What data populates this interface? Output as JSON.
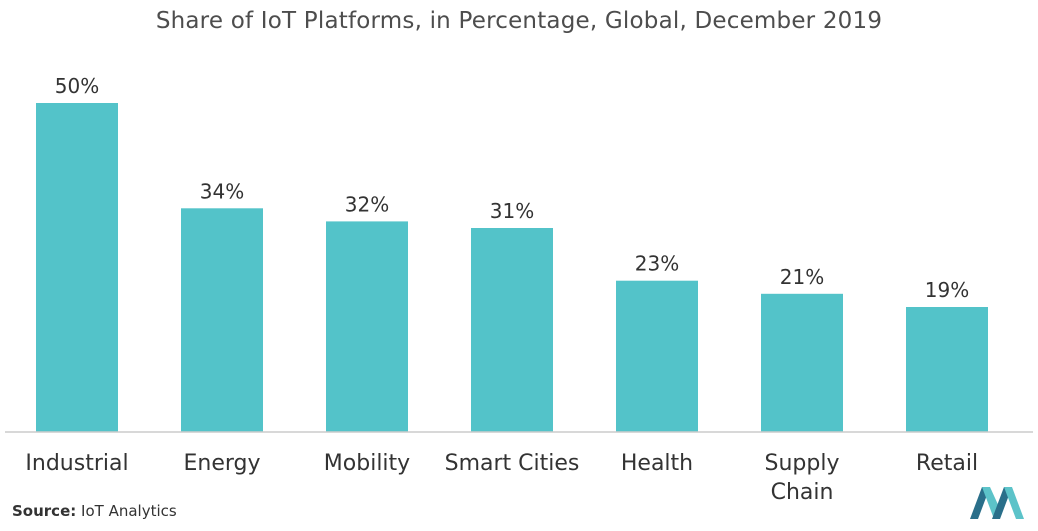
{
  "chart_data": {
    "type": "bar",
    "title": "Share of IoT Platforms, in Percentage, Global, December 2019",
    "categories": [
      "Industrial",
      "Energy",
      "Mobility",
      "Smart Cities",
      "Health",
      "Supply Chain",
      "Retail"
    ],
    "category_lines": [
      [
        "Industrial"
      ],
      [
        "Energy"
      ],
      [
        "Mobility"
      ],
      [
        "Smart Cities"
      ],
      [
        "Health"
      ],
      [
        "Supply",
        "Chain"
      ],
      [
        "Retail"
      ]
    ],
    "values": [
      50,
      34,
      32,
      31,
      23,
      21,
      19
    ],
    "value_labels": [
      "50%",
      "34%",
      "32%",
      "31%",
      "23%",
      "21%",
      "19%"
    ],
    "xlabel": "",
    "ylabel": "",
    "ylim": [
      0,
      50
    ],
    "grid": false,
    "legend": "none",
    "bar_color": "#53c3c9"
  },
  "source": {
    "label": "Source:",
    "text": "IoT Analytics"
  },
  "colors": {
    "bar": "#53c3c9",
    "axis": "#cccccc",
    "logo_dark": "#2a6f8a",
    "logo_light": "#5cc3c9"
  }
}
